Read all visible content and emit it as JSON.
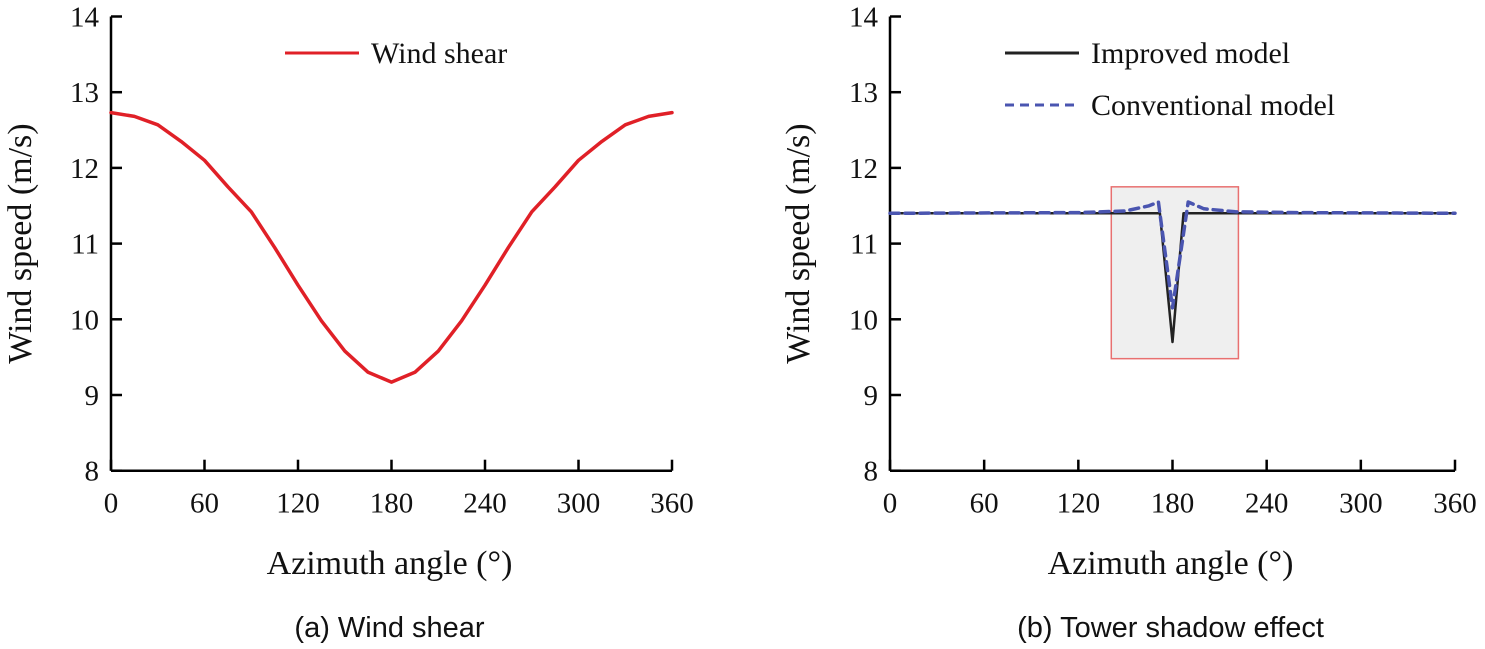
{
  "chart_data": [
    {
      "type": "line",
      "caption": "(a) Wind shear",
      "xlabel": "Azimuth angle (°)",
      "ylabel": "Wind speed (m/s)",
      "xlim": [
        0,
        360
      ],
      "ylim": [
        8,
        14
      ],
      "xticks": [
        0,
        60,
        120,
        180,
        240,
        300,
        360
      ],
      "yticks": [
        8,
        9,
        10,
        11,
        12,
        13,
        14
      ],
      "grid": false,
      "legend_position": "top-center",
      "series": [
        {
          "name": "Wind shear",
          "color": "#e02027",
          "style": "solid",
          "x": [
            0,
            15,
            30,
            45,
            60,
            75,
            90,
            105,
            120,
            135,
            150,
            165,
            180,
            195,
            210,
            225,
            240,
            255,
            270,
            285,
            300,
            315,
            330,
            345,
            360
          ],
          "y": [
            12.73,
            12.68,
            12.57,
            12.35,
            12.1,
            11.75,
            11.42,
            10.95,
            10.45,
            9.98,
            9.58,
            9.3,
            9.17,
            9.3,
            9.58,
            9.98,
            10.45,
            10.95,
            11.42,
            11.75,
            12.1,
            12.35,
            12.57,
            12.68,
            12.73
          ]
        }
      ]
    },
    {
      "type": "line",
      "caption": "(b) Tower shadow effect",
      "xlabel": "Azimuth angle (°)",
      "ylabel": "Wind speed (m/s)",
      "xlim": [
        0,
        360
      ],
      "ylim": [
        8,
        14
      ],
      "xticks": [
        0,
        60,
        120,
        180,
        240,
        300,
        360
      ],
      "yticks": [
        8,
        9,
        10,
        11,
        12,
        13,
        14
      ],
      "grid": false,
      "legend_position": "top-center",
      "highlight_box": {
        "x": [
          141,
          222
        ],
        "y": [
          9.48,
          11.75
        ],
        "fill": "#efefef",
        "stroke": "#e87070"
      },
      "series": [
        {
          "name": "Improved model",
          "color": "#222222",
          "style": "solid",
          "x": [
            0,
            172,
            180,
            187,
            360
          ],
          "y": [
            11.4,
            11.4,
            9.7,
            11.4,
            11.4
          ]
        },
        {
          "name": "Conventional model",
          "color": "#4a55b0",
          "style": "dashed",
          "x": [
            0,
            120,
            150,
            165,
            171,
            180,
            190,
            200,
            220,
            260,
            360
          ],
          "y": [
            11.4,
            11.41,
            11.43,
            11.5,
            11.55,
            10.15,
            11.55,
            11.46,
            11.42,
            11.41,
            11.4
          ]
        }
      ]
    }
  ]
}
